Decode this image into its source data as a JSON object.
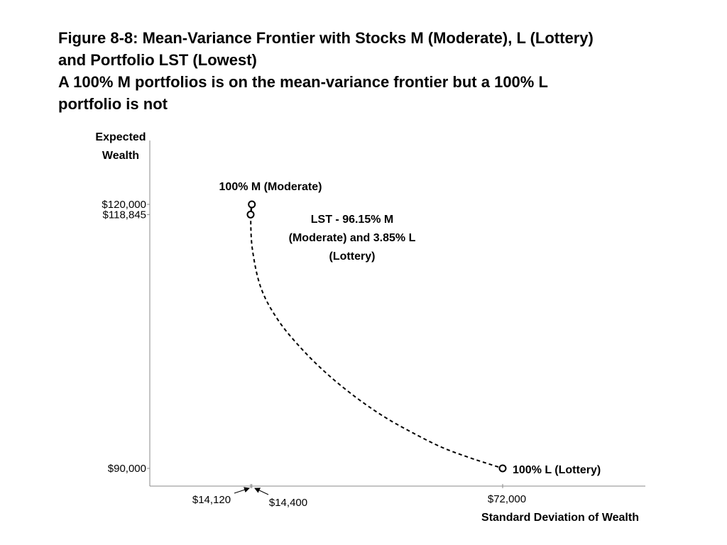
{
  "title_lines": [
    "Figure 8-8: Mean-Variance Frontier with Stocks M (Moderate), L (Lottery)",
    "and Portfolio LST (Lowest)",
    "A 100% M portfolios is on the mean-variance frontier but a 100% L",
    "portfolio is not"
  ],
  "chart_data": {
    "type": "line",
    "ylabel_lines": [
      "Expected",
      "Wealth"
    ],
    "xlabel": "Standard Deviation of Wealth",
    "x_ticks": [
      {
        "value": 14120,
        "label": "$14,120"
      },
      {
        "value": 14400,
        "label": "$14,400"
      },
      {
        "value": 72000,
        "label": "$72,000"
      }
    ],
    "y_ticks": [
      {
        "value": 90000,
        "label": "$90,000"
      },
      {
        "value": 118845,
        "label": "$118,845"
      },
      {
        "value": 120000,
        "label": "$120,000"
      }
    ],
    "xlim": [
      0,
      84000
    ],
    "ylim": [
      88000,
      127000
    ],
    "series": [
      {
        "style": "solid",
        "points": [
          [
            14400,
            120000
          ],
          [
            14120,
            118845
          ]
        ]
      },
      {
        "style": "dashed",
        "points": [
          [
            14120,
            118845
          ],
          [
            14500,
            115000
          ],
          [
            16500,
            110500
          ],
          [
            20500,
            106800
          ],
          [
            26000,
            103500
          ],
          [
            32000,
            100600
          ],
          [
            38500,
            98000
          ],
          [
            45000,
            95800
          ],
          [
            51500,
            94000
          ],
          [
            58000,
            92400
          ],
          [
            64500,
            91200
          ],
          [
            72000,
            90000
          ]
        ]
      }
    ],
    "points": [
      {
        "x": 14400,
        "y": 120000,
        "label": "100% M (Moderate)",
        "label_lines": [
          "100% M (Moderate)"
        ]
      },
      {
        "x": 14120,
        "y": 118845,
        "label": "LST - 96.15% M (Moderate) and 3.85% L (Lottery)",
        "label_lines": [
          "LST - 96.15% M",
          "(Moderate) and 3.85% L",
          "(Lottery)"
        ]
      },
      {
        "x": 72000,
        "y": 90000,
        "label": "100% L (Lottery)",
        "label_lines": [
          "100% L (Lottery)"
        ]
      }
    ]
  }
}
